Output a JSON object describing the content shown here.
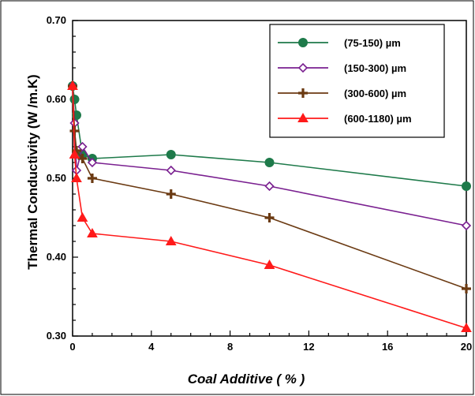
{
  "chart_data": {
    "type": "line",
    "xlabel": "Coal Additive ( % )",
    "ylabel": "Thermal Conductivity (W /m.K)",
    "xlim": [
      0,
      20
    ],
    "ylim": [
      0.3,
      0.7
    ],
    "x_ticks": [
      "0",
      "4",
      "8",
      "12",
      "16",
      "20"
    ],
    "y_ticks": [
      "0.30",
      "0.40",
      "0.50",
      "0.60",
      "0.70"
    ],
    "grid": false,
    "legend_position": "top-right",
    "series": [
      {
        "name": "(75-150) µm",
        "color": "#1e7a4a",
        "marker": "circle",
        "x": [
          0,
          0.1,
          0.2,
          0.5,
          1,
          5,
          10,
          20
        ],
        "y": [
          0.617,
          0.6,
          0.58,
          0.53,
          0.525,
          0.53,
          0.52,
          0.49
        ]
      },
      {
        "name": "(150-300) µm",
        "color": "#7a2090",
        "marker": "diamond",
        "x": [
          0,
          0.1,
          0.2,
          0.5,
          1,
          5,
          10,
          20
        ],
        "y": [
          0.617,
          0.57,
          0.51,
          0.54,
          0.52,
          0.51,
          0.49,
          0.44
        ]
      },
      {
        "name": "(300-600) µm",
        "color": "#6b3a12",
        "marker": "plus",
        "x": [
          0,
          0.1,
          0.2,
          0.5,
          1,
          5,
          10,
          20
        ],
        "y": [
          0.617,
          0.56,
          0.535,
          0.525,
          0.5,
          0.48,
          0.45,
          0.36
        ]
      },
      {
        "name": "(600-1180) µm",
        "color": "#ff1a1a",
        "marker": "triangle",
        "x": [
          0,
          0.1,
          0.2,
          0.5,
          1,
          5,
          10,
          20
        ],
        "y": [
          0.617,
          0.53,
          0.5,
          0.45,
          0.43,
          0.42,
          0.39,
          0.31
        ]
      }
    ]
  }
}
